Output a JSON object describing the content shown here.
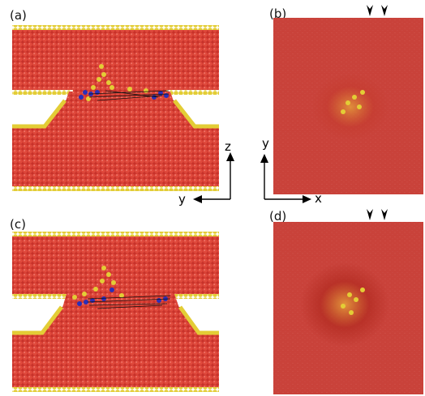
{
  "panels": [
    {
      "id": "a",
      "label": "(a)"
    },
    {
      "id": "b",
      "label": "(b)"
    },
    {
      "id": "c",
      "label": "(c)"
    },
    {
      "id": "d",
      "label": "(d)"
    }
  ],
  "axes_side": {
    "vertical": "z",
    "horizontal": "y"
  },
  "axes_top": {
    "vertical": "y",
    "horizontal": "x"
  },
  "colors": {
    "bulk": "#d23a2c",
    "surface": "#e6cf3a",
    "defect_blue": "#2a2fb8",
    "top_view": "#c9423a",
    "background": "#ffffff"
  }
}
